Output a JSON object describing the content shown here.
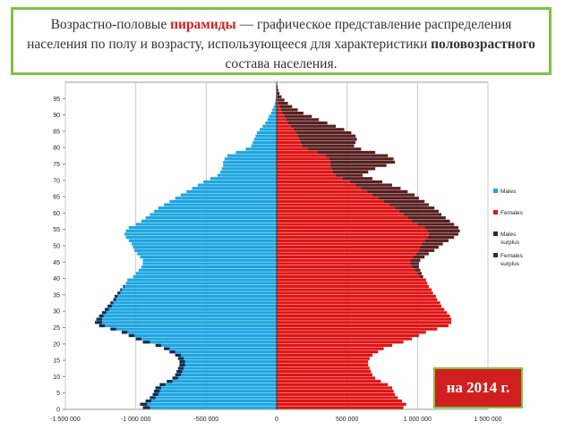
{
  "caption": {
    "part1": "Возрастно-половые ",
    "highlight": "пирамиды",
    "part2": " — графическое представление распределения населения по полу и возрасту, использующееся для характеристики ",
    "bold": "половозрастного",
    "part3": " состава населения."
  },
  "badge": "на 2014 г.",
  "colors": {
    "males": "#1ea6e0",
    "females": "#e01414",
    "males_surplus": "#122c55",
    "females_surplus": "#582020",
    "border": "#7fc241",
    "grid": "#c8c8c8"
  },
  "chart_data": {
    "type": "bar",
    "orientation": "horizontal-pyramid",
    "title": "",
    "xlabel": "",
    "ylabel": "",
    "xlim": [
      -1500000,
      1500000
    ],
    "ylim": [
      0,
      100
    ],
    "x_ticks": [
      -1500000,
      -1000000,
      -500000,
      0,
      500000,
      1000000,
      1500000
    ],
    "x_tick_labels": [
      "-1 500 000",
      "-1 000 000",
      "-500 000",
      "0",
      "500 000",
      "1 000 000",
      "1 500 000"
    ],
    "y_ticks": [
      0,
      5,
      10,
      15,
      20,
      25,
      30,
      35,
      40,
      45,
      50,
      55,
      60,
      65,
      70,
      75,
      80,
      85,
      90,
      95
    ],
    "y_tick_labels": [
      "0",
      "5",
      "10",
      "15",
      "20",
      "25",
      "30",
      "35",
      "40",
      "45",
      "50",
      "55",
      "60",
      "65",
      "70",
      "75",
      "80",
      "85",
      "90",
      "95"
    ],
    "legend_position": "right",
    "legend": [
      "Males",
      "Females",
      "Males surplus",
      "Females surplus"
    ],
    "ages": [
      0,
      1,
      2,
      3,
      4,
      5,
      6,
      7,
      8,
      9,
      10,
      11,
      12,
      13,
      14,
      15,
      16,
      17,
      18,
      19,
      20,
      21,
      22,
      23,
      24,
      25,
      26,
      27,
      28,
      29,
      30,
      31,
      32,
      33,
      34,
      35,
      36,
      37,
      38,
      39,
      40,
      41,
      42,
      43,
      44,
      45,
      46,
      47,
      48,
      49,
      50,
      51,
      52,
      53,
      54,
      55,
      56,
      57,
      58,
      59,
      60,
      61,
      62,
      63,
      64,
      65,
      66,
      67,
      68,
      69,
      70,
      71,
      72,
      73,
      74,
      75,
      76,
      77,
      78,
      79,
      80,
      81,
      82,
      83,
      84,
      85,
      86,
      87,
      88,
      89,
      90,
      91,
      92,
      93,
      94,
      95,
      96,
      97,
      98,
      99,
      100
    ],
    "series": [
      {
        "name": "Males",
        "values": [
          950000,
          970000,
          930000,
          900000,
          880000,
          870000,
          860000,
          830000,
          780000,
          740000,
          720000,
          710000,
          700000,
          690000,
          690000,
          700000,
          720000,
          760000,
          800000,
          860000,
          950000,
          1000000,
          1050000,
          1100000,
          1180000,
          1260000,
          1290000,
          1280000,
          1260000,
          1240000,
          1220000,
          1200000,
          1180000,
          1160000,
          1150000,
          1130000,
          1110000,
          1090000,
          1070000,
          1060000,
          1020000,
          1000000,
          980000,
          960000,
          950000,
          950000,
          970000,
          990000,
          1010000,
          1020000,
          1030000,
          1050000,
          1070000,
          1080000,
          1070000,
          1050000,
          1000000,
          960000,
          930000,
          900000,
          870000,
          840000,
          800000,
          760000,
          720000,
          680000,
          640000,
          600000,
          560000,
          520000,
          470000,
          420000,
          400000,
          390000,
          380000,
          380000,
          370000,
          350000,
          290000,
          220000,
          180000,
          170000,
          160000,
          150000,
          140000,
          120000,
          100000,
          80000,
          65000,
          55000,
          40000,
          30000,
          20000,
          12000,
          8000,
          5000,
          3000,
          2000,
          1000,
          500,
          200
        ]
      },
      {
        "name": "Females",
        "values": [
          900000,
          920000,
          890000,
          860000,
          840000,
          830000,
          820000,
          790000,
          740000,
          700000,
          680000,
          670000,
          660000,
          650000,
          650000,
          660000,
          680000,
          720000,
          760000,
          820000,
          900000,
          960000,
          1010000,
          1060000,
          1140000,
          1220000,
          1240000,
          1240000,
          1230000,
          1210000,
          1190000,
          1170000,
          1160000,
          1140000,
          1130000,
          1110000,
          1100000,
          1080000,
          1070000,
          1060000,
          1040000,
          1030000,
          1020000,
          1010000,
          1010000,
          1020000,
          1050000,
          1080000,
          1120000,
          1150000,
          1180000,
          1220000,
          1260000,
          1290000,
          1300000,
          1290000,
          1260000,
          1230000,
          1200000,
          1170000,
          1150000,
          1120000,
          1080000,
          1050000,
          1010000,
          980000,
          930000,
          880000,
          820000,
          750000,
          680000,
          610000,
          650000,
          700000,
          780000,
          840000,
          830000,
          790000,
          700000,
          600000,
          550000,
          560000,
          570000,
          560000,
          530000,
          480000,
          420000,
          360000,
          300000,
          250000,
          190000,
          150000,
          110000,
          80000,
          55000,
          35000,
          20000,
          12000,
          7000,
          3000,
          1000
        ]
      }
    ]
  }
}
